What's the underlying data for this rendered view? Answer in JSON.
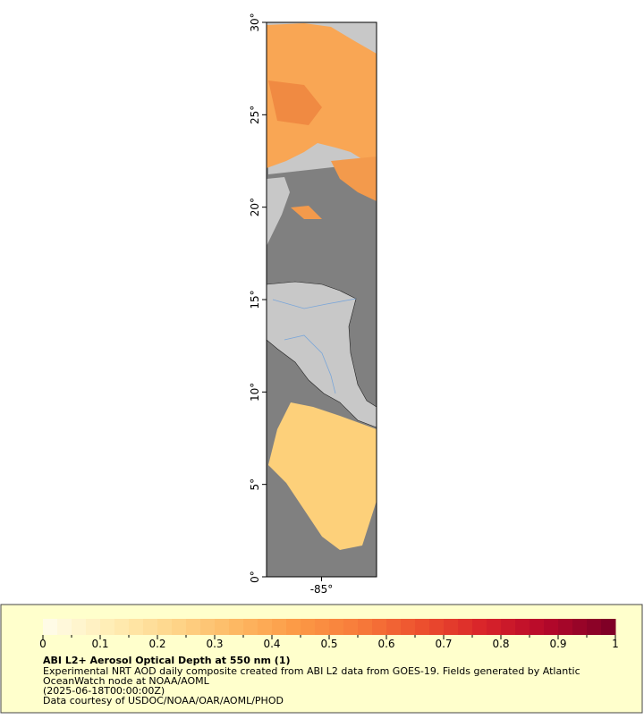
{
  "map": {
    "lat_range": [
      0,
      30
    ],
    "lon_range": [
      -88,
      -82
    ],
    "lat_ticks": [
      {
        "value": 0,
        "label": "0°"
      },
      {
        "value": 5,
        "label": "5°"
      },
      {
        "value": 10,
        "label": "10°"
      },
      {
        "value": 15,
        "label": "15°"
      },
      {
        "value": 20,
        "label": "20°"
      },
      {
        "value": 25,
        "label": "25°"
      },
      {
        "value": 30,
        "label": "30°"
      }
    ],
    "lon_ticks": [
      {
        "value": -85,
        "label": "-85°"
      }
    ]
  },
  "colorbar": {
    "lim": [
      0,
      1
    ],
    "ticks": [
      0,
      0.1,
      0.2,
      0.3,
      0.4,
      0.5,
      0.6,
      0.7,
      0.8,
      0.9,
      1
    ],
    "colors": [
      "#fffbe6",
      "#ffedb3",
      "#fed58a",
      "#fdb863",
      "#fc9945",
      "#f77a3a",
      "#ec4f2e",
      "#d9232a",
      "#b5082a",
      "#800026"
    ]
  },
  "caption": {
    "title": "ABI L2+ Aerosol Optical Depth at 550 nm (1)",
    "lines": [
      "Experimental NRT AOD daily composite created from ABI L2 data from GOES-19. Fields generated by Atlantic",
      "OceanWatch node at NOAA/AOML",
      "(2025-06-18T00:00:00Z)",
      "Data courtesy of USDOC/NOAA/OAR/AOML/PHOD"
    ]
  }
}
